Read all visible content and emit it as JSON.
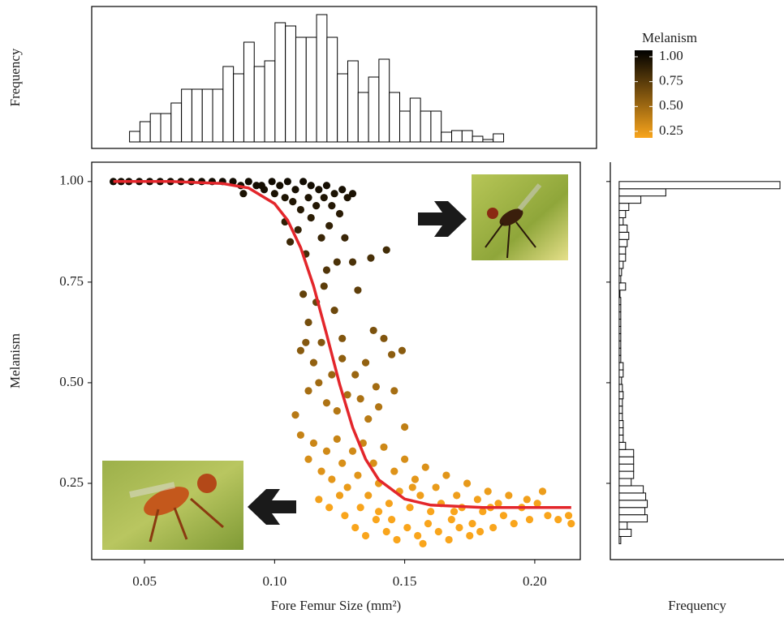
{
  "chart_data": [
    {
      "type": "histogram",
      "orientation": "vertical",
      "bins": [
        0.037,
        0.042,
        0.047,
        0.052,
        0.057,
        0.062,
        0.067,
        0.072,
        0.077,
        0.082,
        0.087,
        0.092,
        0.097,
        0.102,
        0.107,
        0.112,
        0.117,
        0.122,
        0.127,
        0.132,
        0.137,
        0.142,
        0.147,
        0.152,
        0.157,
        0.162,
        0.167,
        0.172,
        0.177,
        0.182,
        0.187,
        0.192,
        0.197,
        0.202,
        0.207,
        0.212,
        0.217
      ],
      "values": [
        13,
        25,
        35,
        35,
        48,
        65,
        65,
        65,
        65,
        93,
        84,
        123,
        93,
        100,
        147,
        143,
        129,
        129,
        157,
        129,
        84,
        100,
        61,
        80,
        102,
        61,
        38,
        54,
        38,
        38,
        12,
        14,
        14,
        7,
        3,
        10
      ],
      "xlim": [
        0.0188,
        0.2617
      ],
      "ylim": [
        -8,
        167
      ],
      "y_label": "Frequency",
      "color": "#ffffff",
      "edge_color": "#000000"
    },
    {
      "type": "scatter",
      "x": [
        0.038,
        0.041,
        0.044,
        0.048,
        0.052,
        0.056,
        0.06,
        0.064,
        0.068,
        0.072,
        0.076,
        0.08,
        0.084,
        0.087,
        0.09,
        0.093,
        0.096,
        0.099,
        0.102,
        0.105,
        0.108,
        0.111,
        0.114,
        0.117,
        0.12,
        0.123,
        0.126,
        0.128,
        0.13,
        0.088,
        0.095,
        0.1,
        0.104,
        0.107,
        0.11,
        0.113,
        0.116,
        0.119,
        0.122,
        0.125,
        0.104,
        0.106,
        0.109,
        0.112,
        0.114,
        0.118,
        0.12,
        0.121,
        0.124,
        0.127,
        0.13,
        0.137,
        0.143,
        0.111,
        0.113,
        0.116,
        0.119,
        0.123,
        0.126,
        0.132,
        0.138,
        0.142,
        0.145,
        0.11,
        0.112,
        0.115,
        0.118,
        0.122,
        0.126,
        0.131,
        0.135,
        0.139,
        0.149,
        0.108,
        0.113,
        0.117,
        0.12,
        0.124,
        0.128,
        0.133,
        0.136,
        0.14,
        0.146,
        0.15,
        0.11,
        0.113,
        0.115,
        0.118,
        0.12,
        0.122,
        0.124,
        0.126,
        0.128,
        0.13,
        0.132,
        0.134,
        0.136,
        0.138,
        0.14,
        0.142,
        0.144,
        0.146,
        0.148,
        0.15,
        0.152,
        0.154,
        0.156,
        0.158,
        0.16,
        0.162,
        0.164,
        0.166,
        0.168,
        0.17,
        0.172,
        0.174,
        0.176,
        0.178,
        0.18,
        0.182,
        0.184,
        0.186,
        0.188,
        0.19,
        0.192,
        0.195,
        0.198,
        0.201,
        0.205,
        0.209,
        0.213,
        0.214,
        0.117,
        0.121,
        0.127,
        0.131,
        0.135,
        0.139,
        0.143,
        0.147,
        0.151,
        0.155,
        0.159,
        0.163,
        0.167,
        0.171,
        0.175,
        0.179,
        0.157,
        0.14,
        0.125,
        0.133,
        0.145,
        0.153,
        0.169,
        0.183,
        0.197,
        0.203
      ],
      "values": [
        1.0,
        1.0,
        1.0,
        1.0,
        1.0,
        1.0,
        1.0,
        1.0,
        1.0,
        1.0,
        1.0,
        1.0,
        1.0,
        0.99,
        1.0,
        0.99,
        0.98,
        1.0,
        0.99,
        1.0,
        0.98,
        1.0,
        0.99,
        0.98,
        0.99,
        0.97,
        0.98,
        0.96,
        0.97,
        0.97,
        0.99,
        0.97,
        0.96,
        0.95,
        0.93,
        0.96,
        0.94,
        0.96,
        0.94,
        0.92,
        0.9,
        0.85,
        0.88,
        0.82,
        0.91,
        0.86,
        0.78,
        0.89,
        0.8,
        0.86,
        0.8,
        0.81,
        0.83,
        0.72,
        0.65,
        0.7,
        0.74,
        0.68,
        0.61,
        0.73,
        0.63,
        0.61,
        0.57,
        0.58,
        0.6,
        0.55,
        0.6,
        0.52,
        0.56,
        0.52,
        0.55,
        0.49,
        0.58,
        0.42,
        0.48,
        0.5,
        0.45,
        0.43,
        0.47,
        0.46,
        0.41,
        0.44,
        0.48,
        0.39,
        0.37,
        0.31,
        0.35,
        0.28,
        0.33,
        0.26,
        0.36,
        0.3,
        0.24,
        0.33,
        0.27,
        0.35,
        0.22,
        0.3,
        0.25,
        0.34,
        0.2,
        0.28,
        0.23,
        0.31,
        0.19,
        0.26,
        0.22,
        0.29,
        0.18,
        0.24,
        0.2,
        0.27,
        0.16,
        0.22,
        0.19,
        0.25,
        0.15,
        0.21,
        0.18,
        0.23,
        0.14,
        0.2,
        0.17,
        0.22,
        0.15,
        0.19,
        0.16,
        0.2,
        0.17,
        0.16,
        0.17,
        0.15,
        0.21,
        0.19,
        0.17,
        0.14,
        0.12,
        0.16,
        0.13,
        0.11,
        0.14,
        0.12,
        0.15,
        0.13,
        0.11,
        0.14,
        0.12,
        0.13,
        0.1,
        0.18,
        0.22,
        0.19,
        0.16,
        0.24,
        0.18,
        0.19,
        0.21,
        0.23
      ],
      "curve": {
        "color": "#e3262b",
        "x": [
          0.038,
          0.06,
          0.08,
          0.09,
          0.1,
          0.105,
          0.11,
          0.115,
          0.12,
          0.125,
          0.13,
          0.135,
          0.14,
          0.15,
          0.16,
          0.18,
          0.214
        ],
        "values": [
          1.0,
          1.0,
          0.995,
          0.984,
          0.945,
          0.904,
          0.836,
          0.74,
          0.62,
          0.496,
          0.389,
          0.31,
          0.259,
          0.211,
          0.196,
          0.19,
          0.19
        ]
      },
      "xlim": [
        0.0297,
        0.2175
      ],
      "ylim": [
        0.0605,
        1.048
      ],
      "xticks": [
        0.05,
        {
          "value": 0.1,
          "label": "0.10"
        },
        0.15,
        {
          "value": 0.2,
          "label": "0.20"
        }
      ],
      "yticks": [
        {
          "value": 0.25,
          "label": "0.25"
        },
        {
          "value": 0.5,
          "label": "0.50"
        },
        0.75,
        {
          "value": 1,
          "label": "1.00"
        }
      ],
      "x_label": "Fore Femur Size (mm²)",
      "y_label": "Melanism",
      "colorbar": {
        "title": "Melanism",
        "lim": [
          0.185,
          1.065
        ],
        "low_color": "#f9a51c",
        "high_color": "#000000",
        "ticks": [
          {
            "value": 1,
            "label": "1.00"
          },
          0.75,
          {
            "value": 0.5,
            "label": "0.50"
          },
          0.25
        ]
      }
    },
    {
      "type": "histogram",
      "orientation": "horizontal",
      "bins": [
        0.1,
        0.118,
        0.136,
        0.154,
        0.172,
        0.19,
        0.208,
        0.226,
        0.244,
        0.262,
        0.28,
        0.298,
        0.316,
        0.334,
        0.352,
        0.37,
        0.388,
        0.406,
        0.424,
        0.442,
        0.46,
        0.478,
        0.496,
        0.514,
        0.532,
        0.55,
        0.568,
        0.586,
        0.604,
        0.622,
        0.64,
        0.658,
        0.676,
        0.694,
        0.712,
        0.73,
        0.748,
        0.766,
        0.784,
        0.802,
        0.82,
        0.838,
        0.856,
        0.874,
        0.892,
        0.91,
        0.928,
        0.946,
        0.964,
        0.982,
        1.0
      ],
      "values": [
        2,
        15,
        10,
        35,
        32,
        35,
        33,
        30,
        15,
        18,
        18,
        18,
        18,
        8,
        5,
        5,
        5,
        4,
        4,
        4,
        5,
        4,
        3,
        5,
        5,
        2,
        2,
        2,
        2,
        2,
        2,
        2,
        2,
        2,
        1,
        8,
        2,
        3,
        5,
        8,
        8,
        10,
        12,
        10,
        5,
        8,
        12,
        27,
        58,
        200
      ],
      "xlim": [
        -11,
        205
      ],
      "ylim": [
        0.0605,
        1.048
      ],
      "x_label": "Frequency",
      "color": "#ffffff",
      "edge_color": "#000000"
    }
  ]
}
